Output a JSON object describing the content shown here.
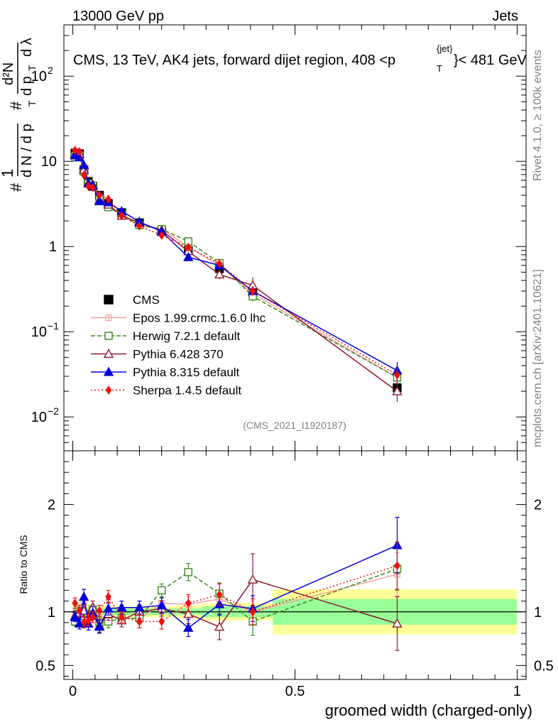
{
  "header": {
    "left": "13000 GeV pp",
    "right": "Jets"
  },
  "side_labels": {
    "rivet": "Rivet 4.1.0, ≥ 100k events",
    "mcplots": "mcplots.cern.ch [arXiv:2401.10621]"
  },
  "chart_data": {
    "type": "line",
    "title": "CMS, 13 TeV, AK4 jets, forward dijet region, 408 <p",
    "title_sup": "{jet}",
    "title_sub": "T",
    "title_tail": "}< 481 GeV",
    "watermark": "(CMS_2021_I1920187)",
    "xlabel": "groomed width (charged-only)",
    "ylabel_main": "1/N dN/dpT d²N/dpT dλ",
    "ylabel_ratio": "Ratio to CMS",
    "xlim": [
      -0.02,
      1.02
    ],
    "ylim_main": [
      0.004,
      400
    ],
    "ylim_ratio": [
      0.37,
      2.5
    ],
    "x_ticks": [
      "0",
      "0.5",
      "1"
    ],
    "x_tick_values": [
      0,
      0.5,
      1
    ],
    "y_ticks_main": [
      {
        "v": 0.01,
        "base": "10",
        "exp": "−2"
      },
      {
        "v": 0.1,
        "base": "10",
        "exp": "−1"
      },
      {
        "v": 1,
        "base": "1",
        "exp": ""
      },
      {
        "v": 10,
        "base": "10",
        "exp": ""
      },
      {
        "v": 100,
        "base": "10",
        "exp": "2"
      }
    ],
    "y_ticks_ratio": [
      {
        "v": 0.5,
        "label": "0.5"
      },
      {
        "v": 1,
        "label": "1"
      },
      {
        "v": 2,
        "label": "2"
      }
    ],
    "x": [
      0.005,
      0.015,
      0.025,
      0.035,
      0.045,
      0.06,
      0.08,
      0.11,
      0.15,
      0.2,
      0.26,
      0.33,
      0.405,
      0.73
    ],
    "bin_edges": [
      0,
      0.01,
      0.02,
      0.03,
      0.04,
      0.05,
      0.07,
      0.09,
      0.13,
      0.17,
      0.23,
      0.29,
      0.37,
      0.45,
      1.0
    ],
    "cms_band_inner": [
      0.05,
      0.05,
      0.04,
      0.04,
      0.04,
      0.03,
      0.03,
      0.03,
      0.03,
      0.03,
      0.03,
      0.05,
      0.05,
      0.12
    ],
    "cms_band_outer": [
      0.08,
      0.08,
      0.07,
      0.07,
      0.06,
      0.05,
      0.05,
      0.05,
      0.05,
      0.05,
      0.06,
      0.08,
      0.08,
      0.21
    ],
    "series": [
      {
        "name": "CMS",
        "color": "#000000",
        "marker": "square-filled",
        "dash": "",
        "values": [
          12.5,
          12.3,
          7.9,
          5.8,
          5.1,
          4.0,
          3.2,
          2.5,
          1.9,
          1.5,
          0.9,
          0.55,
          0.29,
          0.022
        ],
        "ratio": [
          1,
          1,
          1,
          1,
          1,
          1,
          1,
          1,
          1,
          1,
          1,
          1,
          1,
          1
        ],
        "ratio_err": [
          0,
          0,
          0,
          0,
          0,
          0,
          0,
          0,
          0,
          0,
          0,
          0,
          0,
          0
        ]
      },
      {
        "name": "Epos 1.99.crmc.1.6.0 lhc",
        "color": "#f4a0a0",
        "marker": "cross-square",
        "dash": "",
        "values": [
          11.8,
          12.0,
          8.6,
          5.6,
          5.3,
          3.8,
          3.0,
          2.4,
          1.75,
          1.62,
          0.98,
          0.6,
          0.28,
          0.029
        ],
        "ratio": [
          0.95,
          0.98,
          1.08,
          0.97,
          1.02,
          0.95,
          0.95,
          0.95,
          0.93,
          1.08,
          1.07,
          1.12,
          1.0,
          1.35
        ],
        "ratio_err": [
          0.04,
          0.04,
          0.05,
          0.05,
          0.05,
          0.05,
          0.05,
          0.05,
          0.05,
          0.06,
          0.07,
          0.08,
          0.1,
          0.2
        ]
      },
      {
        "name": "Herwig 7.2.1 default",
        "color": "#3c8c1c",
        "marker": "square-open",
        "dash": "6,3",
        "values": [
          11.4,
          11.6,
          7.6,
          5.5,
          5.2,
          3.6,
          2.9,
          2.35,
          1.78,
          1.6,
          1.15,
          0.64,
          0.26,
          0.029
        ],
        "ratio": [
          0.91,
          0.94,
          0.96,
          0.95,
          1.02,
          0.9,
          0.91,
          0.94,
          0.94,
          1.2,
          1.37,
          1.17,
          0.91,
          1.4
        ],
        "ratio_err": [
          0.04,
          0.04,
          0.05,
          0.05,
          0.05,
          0.05,
          0.06,
          0.05,
          0.05,
          0.06,
          0.08,
          0.1,
          0.13,
          0.2
        ]
      },
      {
        "name": "Pythia 6.428 370",
        "color": "#8b1a2e",
        "marker": "triangle-open",
        "dash": "",
        "values": [
          12.0,
          12.2,
          8.0,
          5.5,
          5.3,
          3.5,
          3.1,
          2.3,
          1.9,
          1.55,
          0.88,
          0.47,
          0.35,
          0.02
        ],
        "ratio": [
          0.96,
          0.99,
          1.01,
          0.95,
          1.04,
          0.87,
          0.98,
          0.92,
          1.0,
          1.03,
          0.98,
          0.86,
          1.3,
          0.89
        ],
        "ratio_err": [
          0.05,
          0.05,
          0.06,
          0.06,
          0.06,
          0.06,
          0.06,
          0.06,
          0.06,
          0.07,
          0.09,
          0.12,
          0.24,
          0.25
        ]
      },
      {
        "name": "Pythia 8.315 default",
        "color": "#0000dd",
        "marker": "triangle-filled",
        "dash": "",
        "values": [
          11.8,
          11.1,
          9.0,
          5.5,
          5.2,
          3.4,
          3.3,
          2.6,
          1.95,
          1.5,
          0.75,
          0.6,
          0.3,
          0.035
        ],
        "ratio": [
          0.95,
          0.89,
          1.14,
          0.89,
          0.99,
          0.86,
          1.03,
          1.04,
          1.04,
          1.06,
          0.85,
          1.07,
          1.03,
          1.62
        ],
        "ratio_err": [
          0.04,
          0.05,
          0.07,
          0.06,
          0.06,
          0.06,
          0.06,
          0.06,
          0.06,
          0.07,
          0.08,
          0.1,
          0.12,
          0.26
        ]
      },
      {
        "name": "Sherpa 1.4.5 default",
        "color": "#ee1111",
        "marker": "diamond-filled",
        "dash": "2,3",
        "values": [
          13.5,
          13.0,
          6.9,
          5.1,
          4.9,
          4.0,
          3.6,
          2.3,
          1.74,
          1.35,
          0.98,
          0.63,
          0.3,
          0.031
        ],
        "ratio": [
          1.08,
          1.01,
          0.9,
          0.92,
          0.95,
          1.01,
          1.14,
          0.95,
          0.91,
          0.91,
          1.08,
          1.16,
          1.0,
          1.43
        ],
        "ratio_err": [
          0.05,
          0.05,
          0.05,
          0.05,
          0.05,
          0.05,
          0.06,
          0.05,
          0.06,
          0.07,
          0.08,
          0.1,
          0.12,
          0.22
        ]
      }
    ]
  }
}
